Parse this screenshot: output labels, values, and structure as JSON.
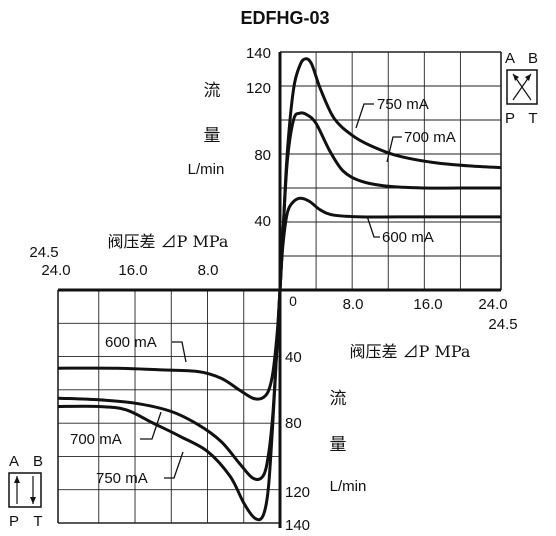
{
  "chart_data": {
    "type": "line",
    "title": "EDFHG-03",
    "unit_flow": "L/min",
    "axis_label_flow_1": "流",
    "axis_label_flow_2": "量",
    "axis_label_pressure_q1": "阀压差 ⊿P MPa",
    "axis_label_pressure_q3": "阀压差 ⊿P MPa",
    "origin_label": "0",
    "x_ticks_positive": [
      "8.0",
      "16.0",
      "24.0"
    ],
    "x_ticks_negative": [
      "24.0",
      "16.0",
      "8.0"
    ],
    "x_limit_label": "24.5",
    "y_ticks_positive": [
      "40",
      "80",
      "120",
      "140"
    ],
    "y_ticks_negative": [
      "40",
      "80",
      "120",
      "140"
    ],
    "xlim": [
      -24.5,
      24.5
    ],
    "ylim": [
      -140,
      140
    ],
    "grid": true,
    "series": [
      {
        "name": "750 mA",
        "quadrant1": [
          [
            0,
            0
          ],
          [
            0.3,
            30
          ],
          [
            0.8,
            80
          ],
          [
            1.5,
            118
          ],
          [
            2.2,
            132
          ],
          [
            2.8,
            136
          ],
          [
            3.5,
            133
          ],
          [
            4.5,
            118
          ],
          [
            6,
            101
          ],
          [
            8,
            91
          ],
          [
            10,
            85
          ],
          [
            13,
            79
          ],
          [
            17,
            75
          ],
          [
            21,
            73
          ],
          [
            24.5,
            72
          ]
        ],
        "quadrant3": [
          [
            0,
            0
          ],
          [
            -0.3,
            -30
          ],
          [
            -0.8,
            -80
          ],
          [
            -1.3,
            -120
          ],
          [
            -1.9,
            -136
          ],
          [
            -2.8,
            -137
          ],
          [
            -4,
            -128
          ],
          [
            -5.5,
            -112
          ],
          [
            -8,
            -97
          ],
          [
            -11,
            -88
          ],
          [
            -14,
            -80
          ],
          [
            -17,
            -72
          ],
          [
            -20,
            -70
          ],
          [
            -24.5,
            -70
          ]
        ]
      },
      {
        "name": "700 mA",
        "quadrant1": [
          [
            0,
            0
          ],
          [
            0.3,
            30
          ],
          [
            0.8,
            75
          ],
          [
            1.5,
            100
          ],
          [
            2.2,
            104
          ],
          [
            3,
            103
          ],
          [
            4,
            98
          ],
          [
            5.5,
            82
          ],
          [
            7,
            70
          ],
          [
            9,
            64
          ],
          [
            12,
            61
          ],
          [
            16,
            60
          ],
          [
            20,
            60
          ],
          [
            24.5,
            60
          ]
        ],
        "quadrant3": [
          [
            0,
            0
          ],
          [
            -0.3,
            -30
          ],
          [
            -0.8,
            -75
          ],
          [
            -1.3,
            -100
          ],
          [
            -1.9,
            -112
          ],
          [
            -3,
            -113
          ],
          [
            -4.5,
            -104
          ],
          [
            -6.5,
            -91
          ],
          [
            -9,
            -81
          ],
          [
            -12,
            -73
          ],
          [
            -16,
            -68
          ],
          [
            -20,
            -66
          ],
          [
            -24.5,
            -65
          ]
        ]
      },
      {
        "name": "600 mA",
        "quadrant1": [
          [
            0,
            0
          ],
          [
            0.3,
            25
          ],
          [
            0.8,
            45
          ],
          [
            1.5,
            52
          ],
          [
            2.3,
            54
          ],
          [
            3.3,
            52
          ],
          [
            4.5,
            47
          ],
          [
            6,
            44
          ],
          [
            9,
            43
          ],
          [
            13,
            43
          ],
          [
            18,
            43
          ],
          [
            24.5,
            43
          ]
        ],
        "quadrant3": [
          [
            0,
            0
          ],
          [
            -0.3,
            -25
          ],
          [
            -0.8,
            -50
          ],
          [
            -1.3,
            -61
          ],
          [
            -2,
            -65
          ],
          [
            -3,
            -65
          ],
          [
            -4.5,
            -60
          ],
          [
            -6.5,
            -53
          ],
          [
            -9,
            -49
          ],
          [
            -13,
            -48
          ],
          [
            -18,
            -47
          ],
          [
            -24.5,
            -47
          ]
        ]
      }
    ],
    "annotations": {
      "symbol_top": {
        "a": "A",
        "b": "B",
        "p": "P",
        "t": "T"
      },
      "symbol_bottom": {
        "a": "A",
        "b": "B",
        "p": "P",
        "t": "T"
      }
    }
  }
}
